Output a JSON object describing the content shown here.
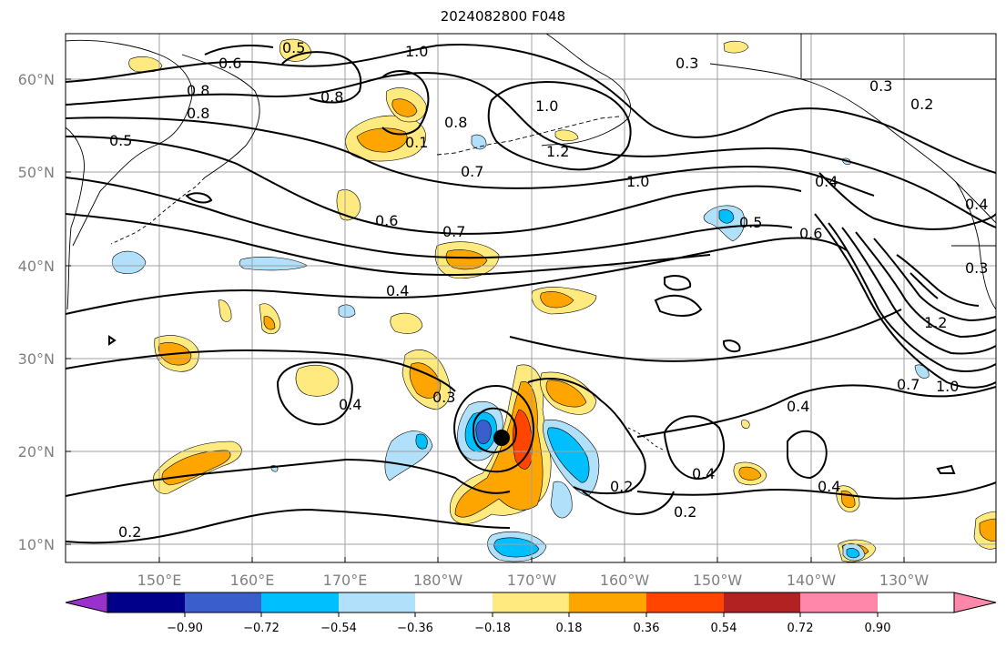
{
  "title": "2024082800 F048",
  "latitude_labels": [
    "60°N",
    "50°N",
    "40°N",
    "30°N",
    "20°N",
    "10°N"
  ],
  "longitude_labels": [
    "150°E",
    "160°E",
    "170°E",
    "180°W",
    "170°W",
    "160°W",
    "150°W",
    "140°W",
    "130°W"
  ],
  "contour_labels": [
    "0.3",
    "0.5",
    "0.6",
    "0.8",
    "1.0",
    "0.8",
    "0.3",
    "0.2",
    "0.8",
    "0.5",
    "0.8",
    "1.0",
    "0.1",
    "1.2",
    "0.7",
    "1.0",
    "0.4",
    "0.6",
    "0.7",
    "0.5",
    "0.4",
    "0.6",
    "0.3",
    "1.2",
    "0.4",
    "0.3",
    "0.4",
    "0.7",
    "1.0",
    "0.4",
    "0.2",
    "0.4",
    "0.4",
    "0.2",
    "0.2"
  ],
  "colorbar": {
    "ticks": [
      "−0.90",
      "−0.72",
      "−0.54",
      "−0.36",
      "−0.18",
      "0.18",
      "0.36",
      "0.54",
      "0.72",
      "0.90"
    ],
    "colors": [
      "#9932cc",
      "#00008b",
      "#3a5fcd",
      "#00bfff",
      "#b0e0fa",
      "#ffffff",
      "#ffea80",
      "#ffa500",
      "#ff4500",
      "#b22222",
      "#ff88aa"
    ]
  },
  "fill_colors": {
    "light_yellow": "#ffea80",
    "orange": "#ffa500",
    "red_orange": "#ff4500",
    "light_blue": "#b0e0fa",
    "blue": "#00bfff",
    "dark_blue": "#3a5fcd"
  },
  "marker": {
    "name": "storm center dot",
    "color": "#000000"
  }
}
